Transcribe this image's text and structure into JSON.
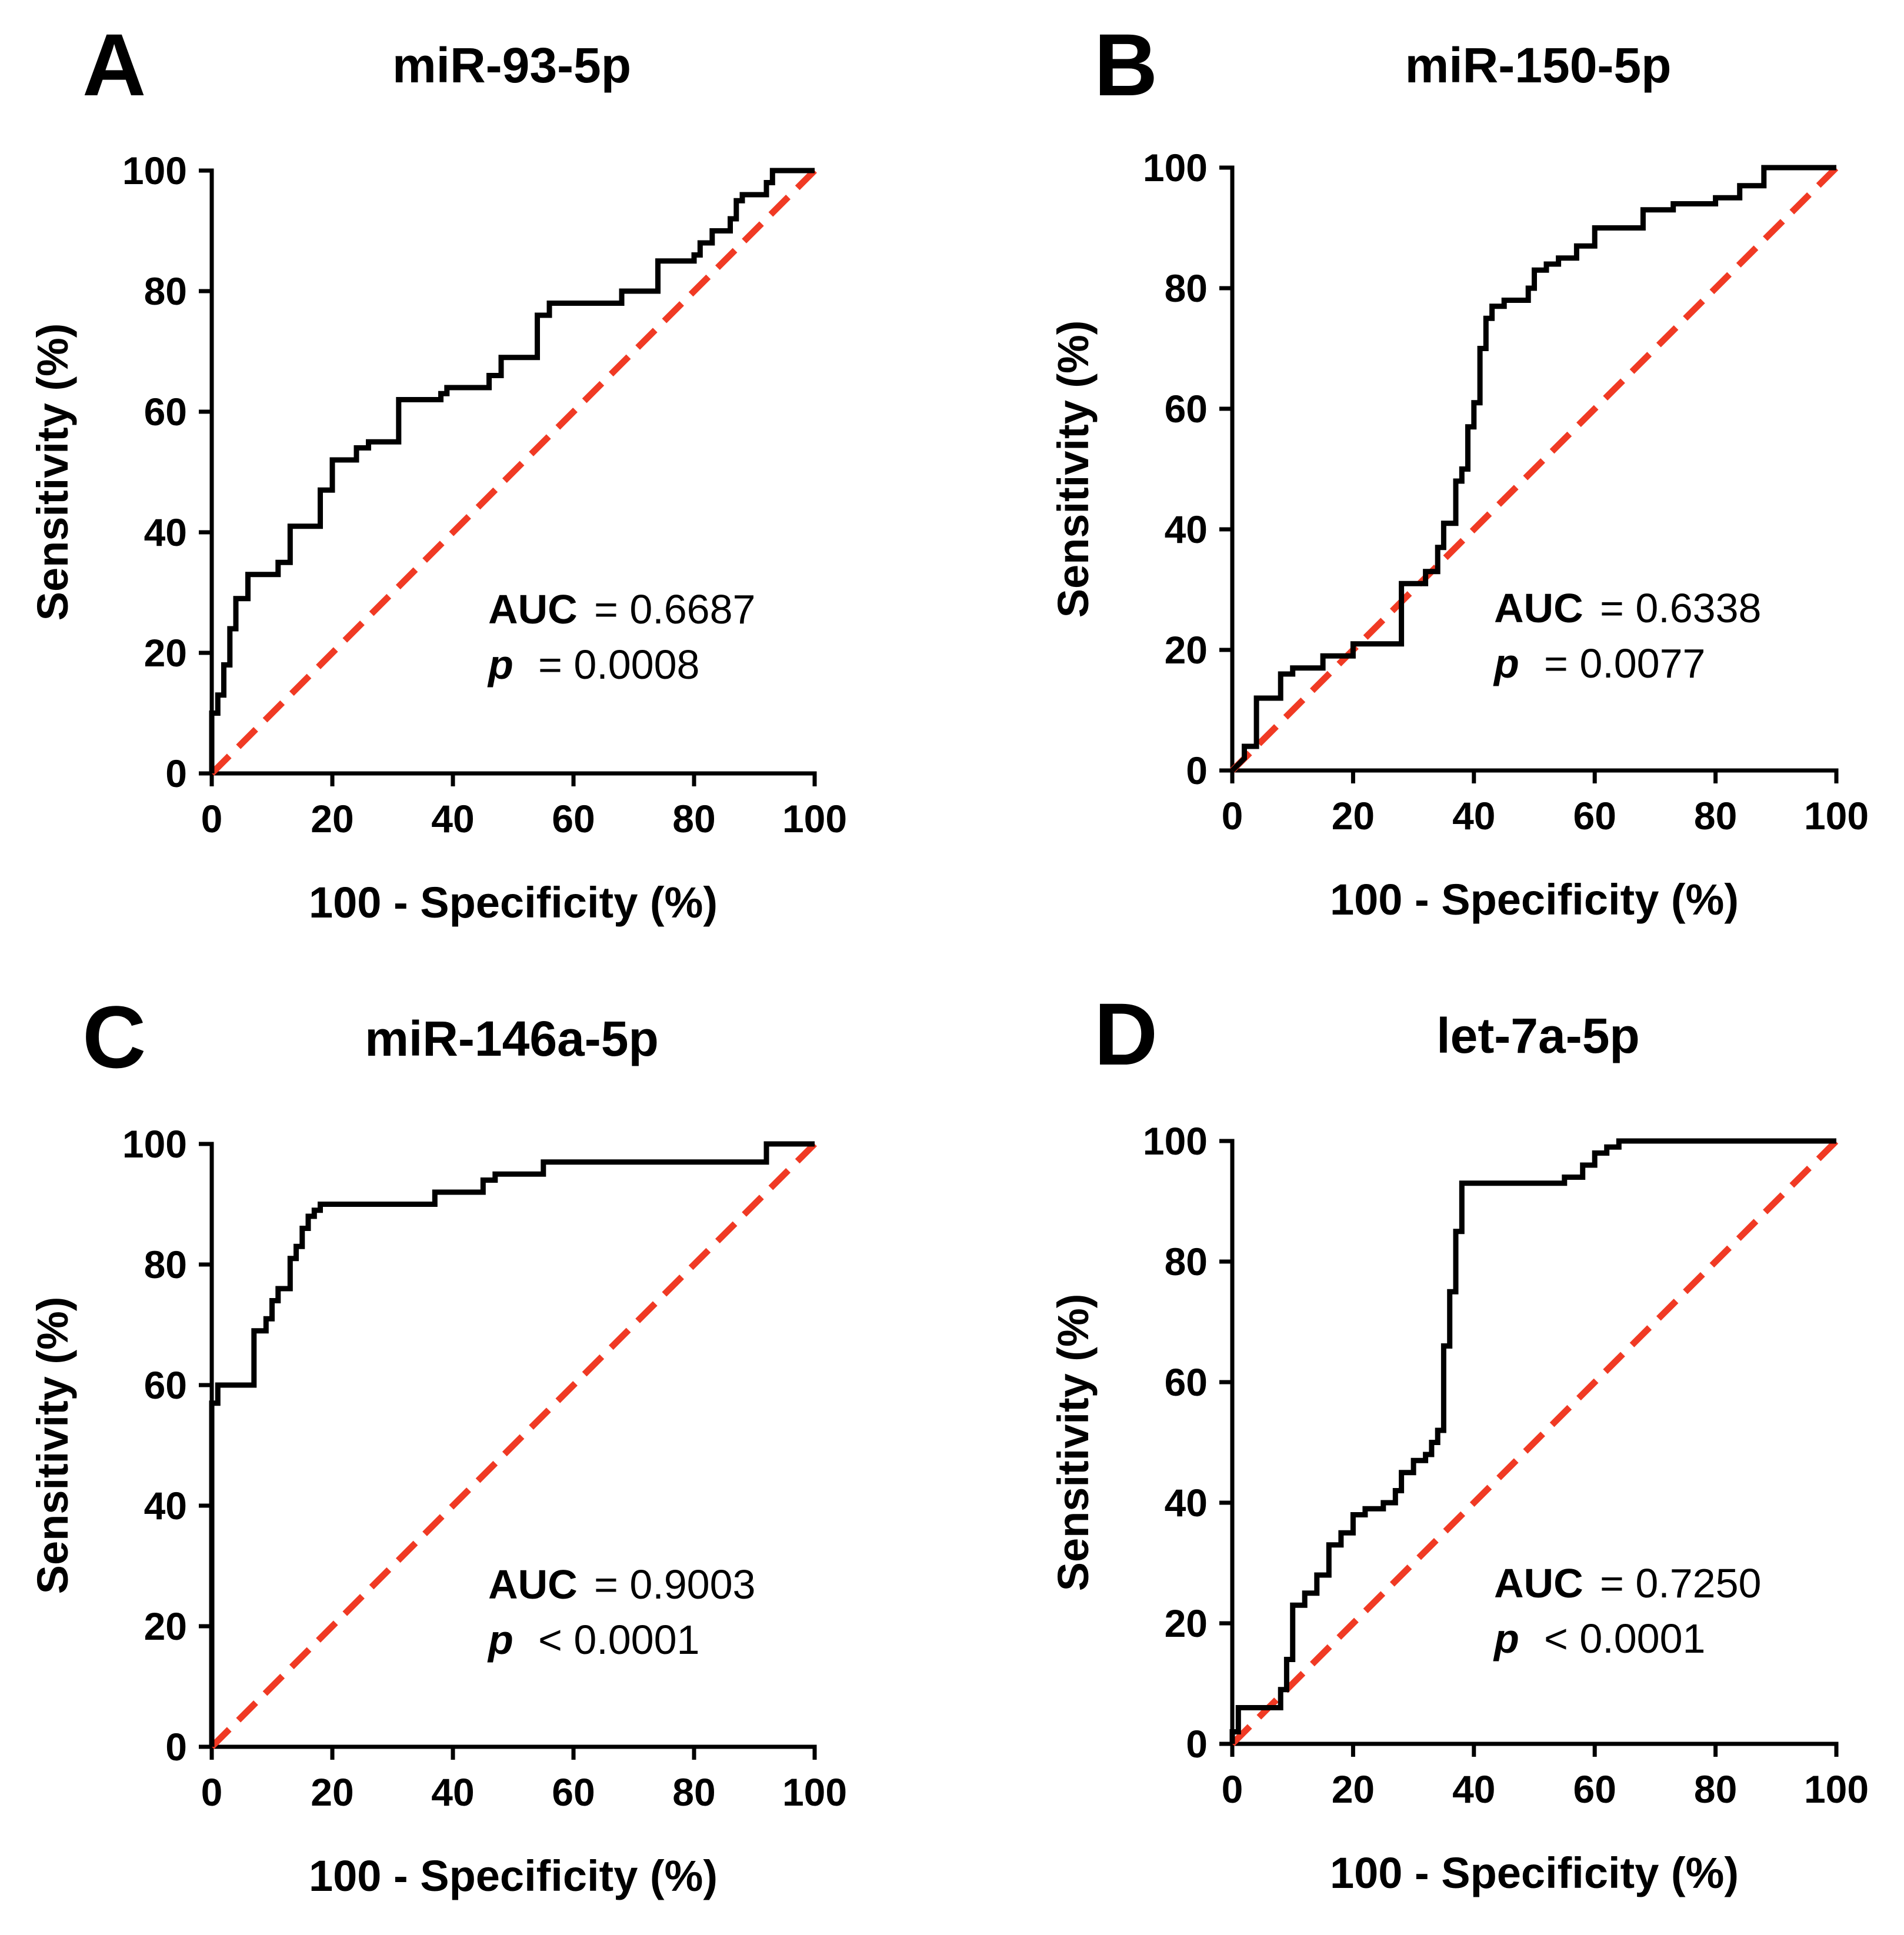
{
  "figure": {
    "panels": [
      {
        "letter": "A",
        "title": "miR-93-5p",
        "auc_label": "AUC",
        "auc_value": "= 0.6687",
        "p_label": "p",
        "p_value": "= 0.0008"
      },
      {
        "letter": "B",
        "title": "miR-150-5p",
        "auc_label": "AUC",
        "auc_value": "= 0.6338",
        "p_label": "p",
        "p_value": "= 0.0077"
      },
      {
        "letter": "C",
        "title": "miR-146a-5p",
        "auc_label": "AUC",
        "auc_value": "= 0.9003",
        "p_label": "p",
        "p_value": "< 0.0001"
      },
      {
        "letter": "D",
        "title": "let-7a-5p",
        "auc_label": "AUC",
        "auc_value": "= 0.7250",
        "p_label": "p",
        "p_value": "< 0.0001"
      }
    ]
  },
  "colors": {
    "roc": "#000000",
    "reference": "#f03a24",
    "background": "#ffffff"
  },
  "chart_data": [
    {
      "type": "line",
      "title": "miR-93-5p",
      "xlabel": "100 - Specificity (%)",
      "ylabel": "Sensitivity (%)",
      "xlim": [
        0,
        100
      ],
      "ylim": [
        0,
        100
      ],
      "xticks": [
        0,
        20,
        40,
        60,
        80,
        100
      ],
      "yticks": [
        0,
        20,
        40,
        60,
        80,
        100
      ],
      "grid": false,
      "auc": 0.6687,
      "p": "= 0.0008",
      "series": [
        {
          "name": "ROC",
          "x": [
            0,
            0,
            1,
            1,
            2,
            2,
            3,
            3,
            4,
            4,
            6,
            6,
            11,
            11,
            13,
            13,
            18,
            18,
            20,
            20,
            24,
            24,
            26,
            26,
            31,
            31,
            38,
            38,
            39,
            39,
            46,
            46,
            48,
            48,
            54,
            54,
            56,
            56,
            68,
            68,
            74,
            74,
            80,
            80,
            81,
            81,
            83,
            83,
            86,
            86,
            87,
            87,
            88,
            88,
            92,
            92,
            93,
            93,
            100
          ],
          "y": [
            0,
            10,
            10,
            13,
            13,
            18,
            18,
            24,
            24,
            29,
            29,
            33,
            33,
            35,
            35,
            41,
            41,
            47,
            47,
            52,
            52,
            54,
            54,
            55,
            55,
            62,
            62,
            63,
            63,
            64,
            64,
            66,
            66,
            69,
            69,
            76,
            76,
            78,
            78,
            80,
            80,
            85,
            85,
            86,
            86,
            88,
            88,
            90,
            90,
            92,
            92,
            95,
            95,
            96,
            96,
            98,
            98,
            100,
            100
          ]
        },
        {
          "name": "Reference",
          "x": [
            0,
            100
          ],
          "y": [
            0,
            100
          ]
        }
      ]
    },
    {
      "type": "line",
      "title": "miR-150-5p",
      "xlabel": "100 - Specificity (%)",
      "ylabel": "Sensitivity (%)",
      "xlim": [
        0,
        100
      ],
      "ylim": [
        0,
        100
      ],
      "xticks": [
        0,
        20,
        40,
        60,
        80,
        100
      ],
      "yticks": [
        0,
        20,
        40,
        60,
        80,
        100
      ],
      "grid": false,
      "auc": 0.6338,
      "p": "= 0.0077",
      "series": [
        {
          "name": "ROC",
          "x": [
            0,
            2,
            2,
            4,
            4,
            8,
            8,
            10,
            10,
            15,
            15,
            20,
            20,
            28,
            28,
            32,
            32,
            34,
            34,
            35,
            35,
            37,
            37,
            38,
            38,
            39,
            39,
            40,
            40,
            41,
            41,
            42,
            42,
            43,
            43,
            45,
            45,
            49,
            49,
            50,
            50,
            52,
            52,
            54,
            54,
            57,
            57,
            60,
            60,
            68,
            68,
            73,
            73,
            80,
            80,
            84,
            84,
            88,
            88,
            100
          ],
          "y": [
            0,
            2,
            4,
            4,
            12,
            12,
            16,
            16,
            17,
            17,
            19,
            19,
            21,
            21,
            31,
            31,
            33,
            33,
            37,
            37,
            41,
            41,
            48,
            48,
            50,
            50,
            57,
            57,
            61,
            61,
            70,
            70,
            75,
            75,
            77,
            77,
            78,
            78,
            80,
            80,
            83,
            83,
            84,
            84,
            85,
            85,
            87,
            87,
            90,
            90,
            93,
            93,
            94,
            94,
            95,
            95,
            97,
            97,
            100,
            100
          ]
        },
        {
          "name": "Reference",
          "x": [
            0,
            100
          ],
          "y": [
            0,
            100
          ]
        }
      ]
    },
    {
      "type": "line",
      "title": "miR-146a-5p",
      "xlabel": "100 - Specificity (%)",
      "ylabel": "Sensitivity (%)",
      "xlim": [
        0,
        100
      ],
      "ylim": [
        0,
        100
      ],
      "xticks": [
        0,
        20,
        40,
        60,
        80,
        100
      ],
      "yticks": [
        0,
        20,
        40,
        60,
        80,
        100
      ],
      "grid": false,
      "auc": 0.9003,
      "p": "< 0.0001",
      "series": [
        {
          "name": "ROC",
          "x": [
            0,
            0,
            1,
            1,
            7,
            7,
            9,
            9,
            10,
            10,
            11,
            11,
            13,
            13,
            14,
            14,
            15,
            15,
            16,
            16,
            17,
            17,
            18,
            18,
            37,
            37,
            45,
            45,
            47,
            47,
            55,
            55,
            92,
            92,
            100
          ],
          "y": [
            0,
            57,
            57,
            60,
            60,
            69,
            69,
            71,
            71,
            74,
            74,
            76,
            76,
            81,
            81,
            83,
            83,
            86,
            86,
            88,
            88,
            89,
            89,
            90,
            90,
            92,
            92,
            94,
            94,
            95,
            95,
            97,
            97,
            100,
            100
          ]
        },
        {
          "name": "Reference",
          "x": [
            0,
            100
          ],
          "y": [
            0,
            100
          ]
        }
      ]
    },
    {
      "type": "line",
      "title": "let-7a-5p",
      "xlabel": "100 - Specificity (%)",
      "ylabel": "Sensitivity (%)",
      "xlim": [
        0,
        100
      ],
      "ylim": [
        0,
        100
      ],
      "xticks": [
        0,
        20,
        40,
        60,
        80,
        100
      ],
      "yticks": [
        0,
        20,
        40,
        60,
        80,
        100
      ],
      "grid": false,
      "auc": 0.725,
      "p": "< 0.0001",
      "series": [
        {
          "name": "ROC",
          "x": [
            0,
            0,
            1,
            1,
            8,
            8,
            9,
            9,
            10,
            10,
            12,
            12,
            14,
            14,
            16,
            16,
            18,
            18,
            20,
            20,
            22,
            22,
            25,
            25,
            27,
            27,
            28,
            28,
            30,
            30,
            32,
            32,
            33,
            33,
            34,
            34,
            35,
            35,
            36,
            36,
            37,
            37,
            38,
            38,
            55,
            55,
            58,
            58,
            60,
            60,
            62,
            62,
            64,
            64,
            100
          ],
          "y": [
            0,
            2,
            2,
            6,
            6,
            9,
            9,
            14,
            14,
            23,
            23,
            25,
            25,
            28,
            28,
            33,
            33,
            35,
            35,
            38,
            38,
            39,
            39,
            40,
            40,
            42,
            42,
            45,
            45,
            47,
            47,
            48,
            48,
            50,
            50,
            52,
            52,
            66,
            66,
            75,
            75,
            85,
            85,
            93,
            93,
            94,
            94,
            96,
            96,
            98,
            98,
            99,
            99,
            100,
            100
          ]
        },
        {
          "name": "Reference",
          "x": [
            0,
            100
          ],
          "y": [
            0,
            100
          ]
        }
      ]
    }
  ]
}
